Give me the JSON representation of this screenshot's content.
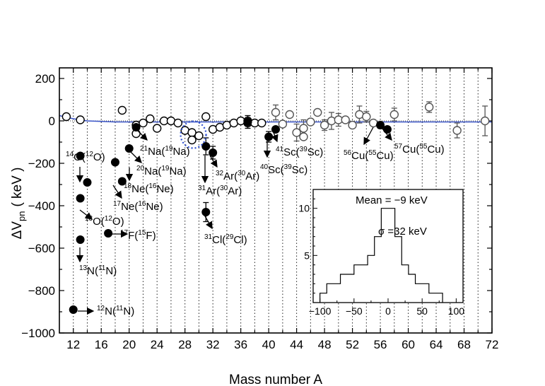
{
  "chart_data": [
    {
      "type": "scatter",
      "xlabel": "Mass number A",
      "ylabel": {
        "main": "ΔV",
        "sub": "pn",
        "unit": "( keV )"
      },
      "xlim": [
        10,
        72
      ],
      "ylim": [
        -1000,
        250
      ],
      "xticks": [
        12,
        16,
        20,
        24,
        28,
        32,
        36,
        40,
        44,
        48,
        52,
        56,
        60,
        64,
        68,
        72
      ],
      "yticks": [
        -1000,
        -800,
        -600,
        -400,
        -200,
        0,
        200
      ],
      "x_gridlines_dotted": [
        12,
        14,
        16,
        18,
        20,
        22,
        24,
        26,
        28,
        30,
        32,
        34,
        36,
        38,
        40,
        42,
        44,
        46,
        48,
        50,
        52,
        54,
        56,
        58,
        60,
        62,
        64,
        66,
        68,
        70
      ],
      "series": [
        {
          "marker": "open-circle",
          "points": [
            {
              "x": 11,
              "y": 20
            },
            {
              "x": 13,
              "y": 5
            },
            {
              "x": 19,
              "y": 50
            },
            {
              "x": 21,
              "y": -20
            },
            {
              "x": 21,
              "y": -60
            },
            {
              "x": 22,
              "y": -10
            },
            {
              "x": 23,
              "y": 10
            },
            {
              "x": 24,
              "y": -35
            },
            {
              "x": 25,
              "y": 0
            },
            {
              "x": 26,
              "y": 0
            },
            {
              "x": 27,
              "y": -10
            },
            {
              "x": 28,
              "y": -45
            },
            {
              "x": 29,
              "y": -55
            },
            {
              "x": 29,
              "y": -90
            },
            {
              "x": 30,
              "y": -70
            },
            {
              "x": 31,
              "y": 20
            },
            {
              "x": 32,
              "y": -40
            },
            {
              "x": 33,
              "y": -30
            },
            {
              "x": 34,
              "y": -20
            },
            {
              "x": 35,
              "y": -10
            },
            {
              "x": 36,
              "y": 0
            },
            {
              "x": 37,
              "y": -10
            },
            {
              "x": 37,
              "y": 0
            },
            {
              "x": 38,
              "y": -10
            },
            {
              "x": 39,
              "y": -10
            }
          ]
        },
        {
          "marker": "open-circle-grey",
          "points": [
            {
              "x": 41,
              "y": 40,
              "err": 35
            },
            {
              "x": 42,
              "y": -15
            },
            {
              "x": 43,
              "y": 30
            },
            {
              "x": 44,
              "y": -55,
              "err": 40
            },
            {
              "x": 45,
              "y": -35,
              "err": 40
            },
            {
              "x": 45,
              "y": -75
            },
            {
              "x": 46,
              "y": -5
            },
            {
              "x": 47,
              "y": 40
            },
            {
              "x": 48,
              "y": -20,
              "err": 25
            },
            {
              "x": 49,
              "y": 0,
              "err": 40
            },
            {
              "x": 50,
              "y": 5,
              "err": 30
            },
            {
              "x": 51,
              "y": 5
            },
            {
              "x": 52,
              "y": -20
            },
            {
              "x": 53,
              "y": 30,
              "err": 40
            },
            {
              "x": 54,
              "y": 20,
              "err": 25
            },
            {
              "x": 55,
              "y": -10
            },
            {
              "x": 58,
              "y": 30,
              "err": 30
            },
            {
              "x": 63,
              "y": 65,
              "err": 25
            },
            {
              "x": 67,
              "y": -45,
              "err": 35
            },
            {
              "x": 71,
              "y": 0,
              "err": 70
            }
          ]
        },
        {
          "marker": "filled-circle",
          "points": [
            {
              "x": 12,
              "y": -890
            },
            {
              "x": 13,
              "y": -165
            },
            {
              "x": 13,
              "y": -365
            },
            {
              "x": 13,
              "y": -560
            },
            {
              "x": 14,
              "y": -290
            },
            {
              "x": 17,
              "y": -530
            },
            {
              "x": 18,
              "y": -195
            },
            {
              "x": 19,
              "y": -285
            },
            {
              "x": 20,
              "y": -130
            },
            {
              "x": 21,
              "y": -30
            },
            {
              "x": 31,
              "y": -120,
              "err": 40
            },
            {
              "x": 31,
              "y": -430,
              "err": 45
            },
            {
              "x": 32,
              "y": -150,
              "err": 30
            },
            {
              "x": 37,
              "y": -5,
              "err": 30
            },
            {
              "x": 40,
              "y": -75,
              "err": 25
            },
            {
              "x": 41,
              "y": -40
            },
            {
              "x": 56,
              "y": -20,
              "err": 15
            },
            {
              "x": 57,
              "y": -40
            }
          ]
        }
      ],
      "fit_line": [
        {
          "x": 10,
          "y": 25
        },
        {
          "x": 12,
          "y": 10
        },
        {
          "x": 14,
          "y": 0
        },
        {
          "x": 18,
          "y": -5
        },
        {
          "x": 40,
          "y": -5
        },
        {
          "x": 72,
          "y": -5
        }
      ],
      "annotations": [
        {
          "a": "14",
          "el": "O",
          "pa": "12",
          "pel": "O"
        },
        {
          "a": "13",
          "el": "O",
          "pa": "12",
          "pel": "O"
        },
        {
          "a": "17",
          "el": "F",
          "pa": "15",
          "pel": "F"
        },
        {
          "a": "13",
          "el": "N",
          "pa": "11",
          "pel": "N"
        },
        {
          "a": "12",
          "el": "N",
          "pa": "11",
          "pel": "N"
        },
        {
          "a": "21",
          "el": "Na",
          "pa": "19",
          "pel": "Na"
        },
        {
          "a": "20",
          "el": "Na",
          "pa": "19",
          "pel": "Na"
        },
        {
          "a": "18",
          "el": "Ne",
          "pa": "16",
          "pel": "Ne"
        },
        {
          "a": "17",
          "el": "Ne",
          "pa": "16",
          "pel": "Ne"
        },
        {
          "a": "32",
          "el": "Ar",
          "pa": "30",
          "pel": "Ar"
        },
        {
          "a": "31",
          "el": "Ar",
          "pa": "30",
          "pel": "Ar"
        },
        {
          "a": "31",
          "el": "Cl",
          "pa": "29",
          "pel": "Cl"
        },
        {
          "a": "41",
          "el": "Sc",
          "pa": "39",
          "pel": "Sc"
        },
        {
          "a": "40",
          "el": "Sc",
          "pa": "39",
          "pel": "Sc"
        },
        {
          "a": "57",
          "el": "Cu",
          "pa": "55",
          "pel": "Cu"
        },
        {
          "a": "56",
          "el": "Cu",
          "pa": "55",
          "pel": "Cu"
        }
      ]
    },
    {
      "type": "histogram",
      "xlim": [
        -110,
        110
      ],
      "ylim": [
        0,
        12
      ],
      "xticks": [
        -100,
        -50,
        0,
        50,
        100
      ],
      "yticks": [
        5,
        10
      ],
      "bin_edges": [
        -100,
        -90,
        -80,
        -70,
        -60,
        -50,
        -40,
        -30,
        -20,
        -10,
        0,
        10,
        20,
        30,
        40,
        50,
        60,
        70,
        80
      ],
      "counts": [
        1,
        2,
        2,
        3,
        3,
        4,
        4,
        5,
        7,
        10,
        10,
        7,
        4,
        3,
        2,
        2,
        1,
        1
      ],
      "mean_label": "Mean = −9 keV",
      "sigma_label": "σ =32  keV"
    }
  ]
}
